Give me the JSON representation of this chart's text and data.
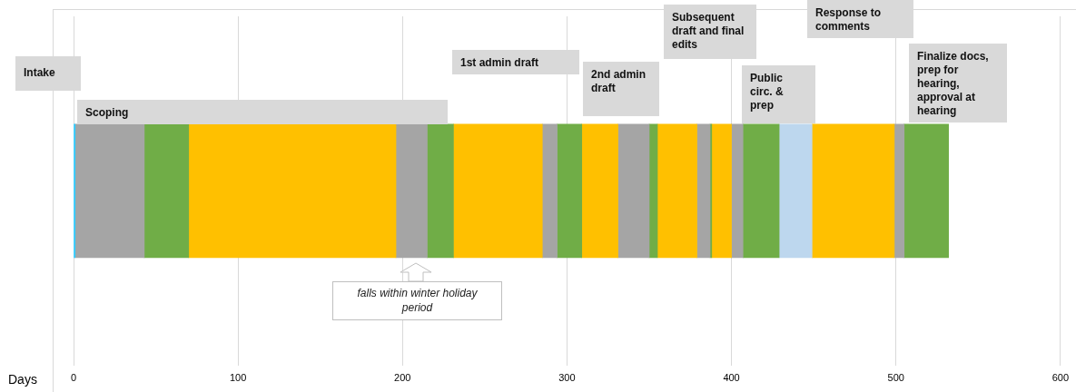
{
  "chart_data": {
    "type": "bar",
    "orientation": "horizontal",
    "stacked": true,
    "categories": [
      null
    ],
    "xlabel": "Days",
    "xlim": [
      0,
      600
    ],
    "xticks": [
      0,
      100,
      200,
      300,
      400,
      500,
      600
    ],
    "grid": "x",
    "legend": false,
    "tick_labels": "x",
    "series": [
      {
        "color": "#33ccff",
        "values": [
          1
        ]
      },
      {
        "color": "#a5a5a5",
        "values": [
          42
        ]
      },
      {
        "color": "#70ad47",
        "values": [
          27
        ]
      },
      {
        "color": "#ffc000",
        "values": [
          126
        ]
      },
      {
        "color": "#a5a5a5",
        "values": [
          19
        ]
      },
      {
        "color": "#70ad47",
        "values": [
          16
        ]
      },
      {
        "color": "#ffc000",
        "values": [
          54
        ]
      },
      {
        "color": "#a5a5a5",
        "values": [
          9
        ]
      },
      {
        "color": "#70ad47",
        "values": [
          15
        ]
      },
      {
        "color": "#ffc000",
        "values": [
          22
        ]
      },
      {
        "color": "#a5a5a5",
        "values": [
          19
        ]
      },
      {
        "color": "#70ad47",
        "values": [
          5
        ]
      },
      {
        "color": "#ffc000",
        "values": [
          24
        ]
      },
      {
        "color": "#a5a5a5",
        "values": [
          8
        ]
      },
      {
        "color": "#70ad47",
        "values": [
          1
        ]
      },
      {
        "color": "#ffc000",
        "values": [
          12
        ]
      },
      {
        "color": "#a5a5a5",
        "values": [
          7
        ]
      },
      {
        "color": "#70ad47",
        "values": [
          22
        ]
      },
      {
        "color": "#bdd7ee",
        "values": [
          20
        ]
      },
      {
        "color": "#ffc000",
        "values": [
          50
        ]
      },
      {
        "color": "#a5a5a5",
        "values": [
          6
        ]
      },
      {
        "color": "#70ad47",
        "values": [
          27
        ]
      }
    ],
    "annotations": [
      "Intake",
      "Scoping",
      "1st admin draft",
      "2nd admin draft",
      "Subsequent draft and final edits",
      "Response to comments",
      "Public circ. & prep",
      "Finalize docs, prep for hearing, approval at hearing",
      "falls within winter holiday period"
    ]
  }
}
